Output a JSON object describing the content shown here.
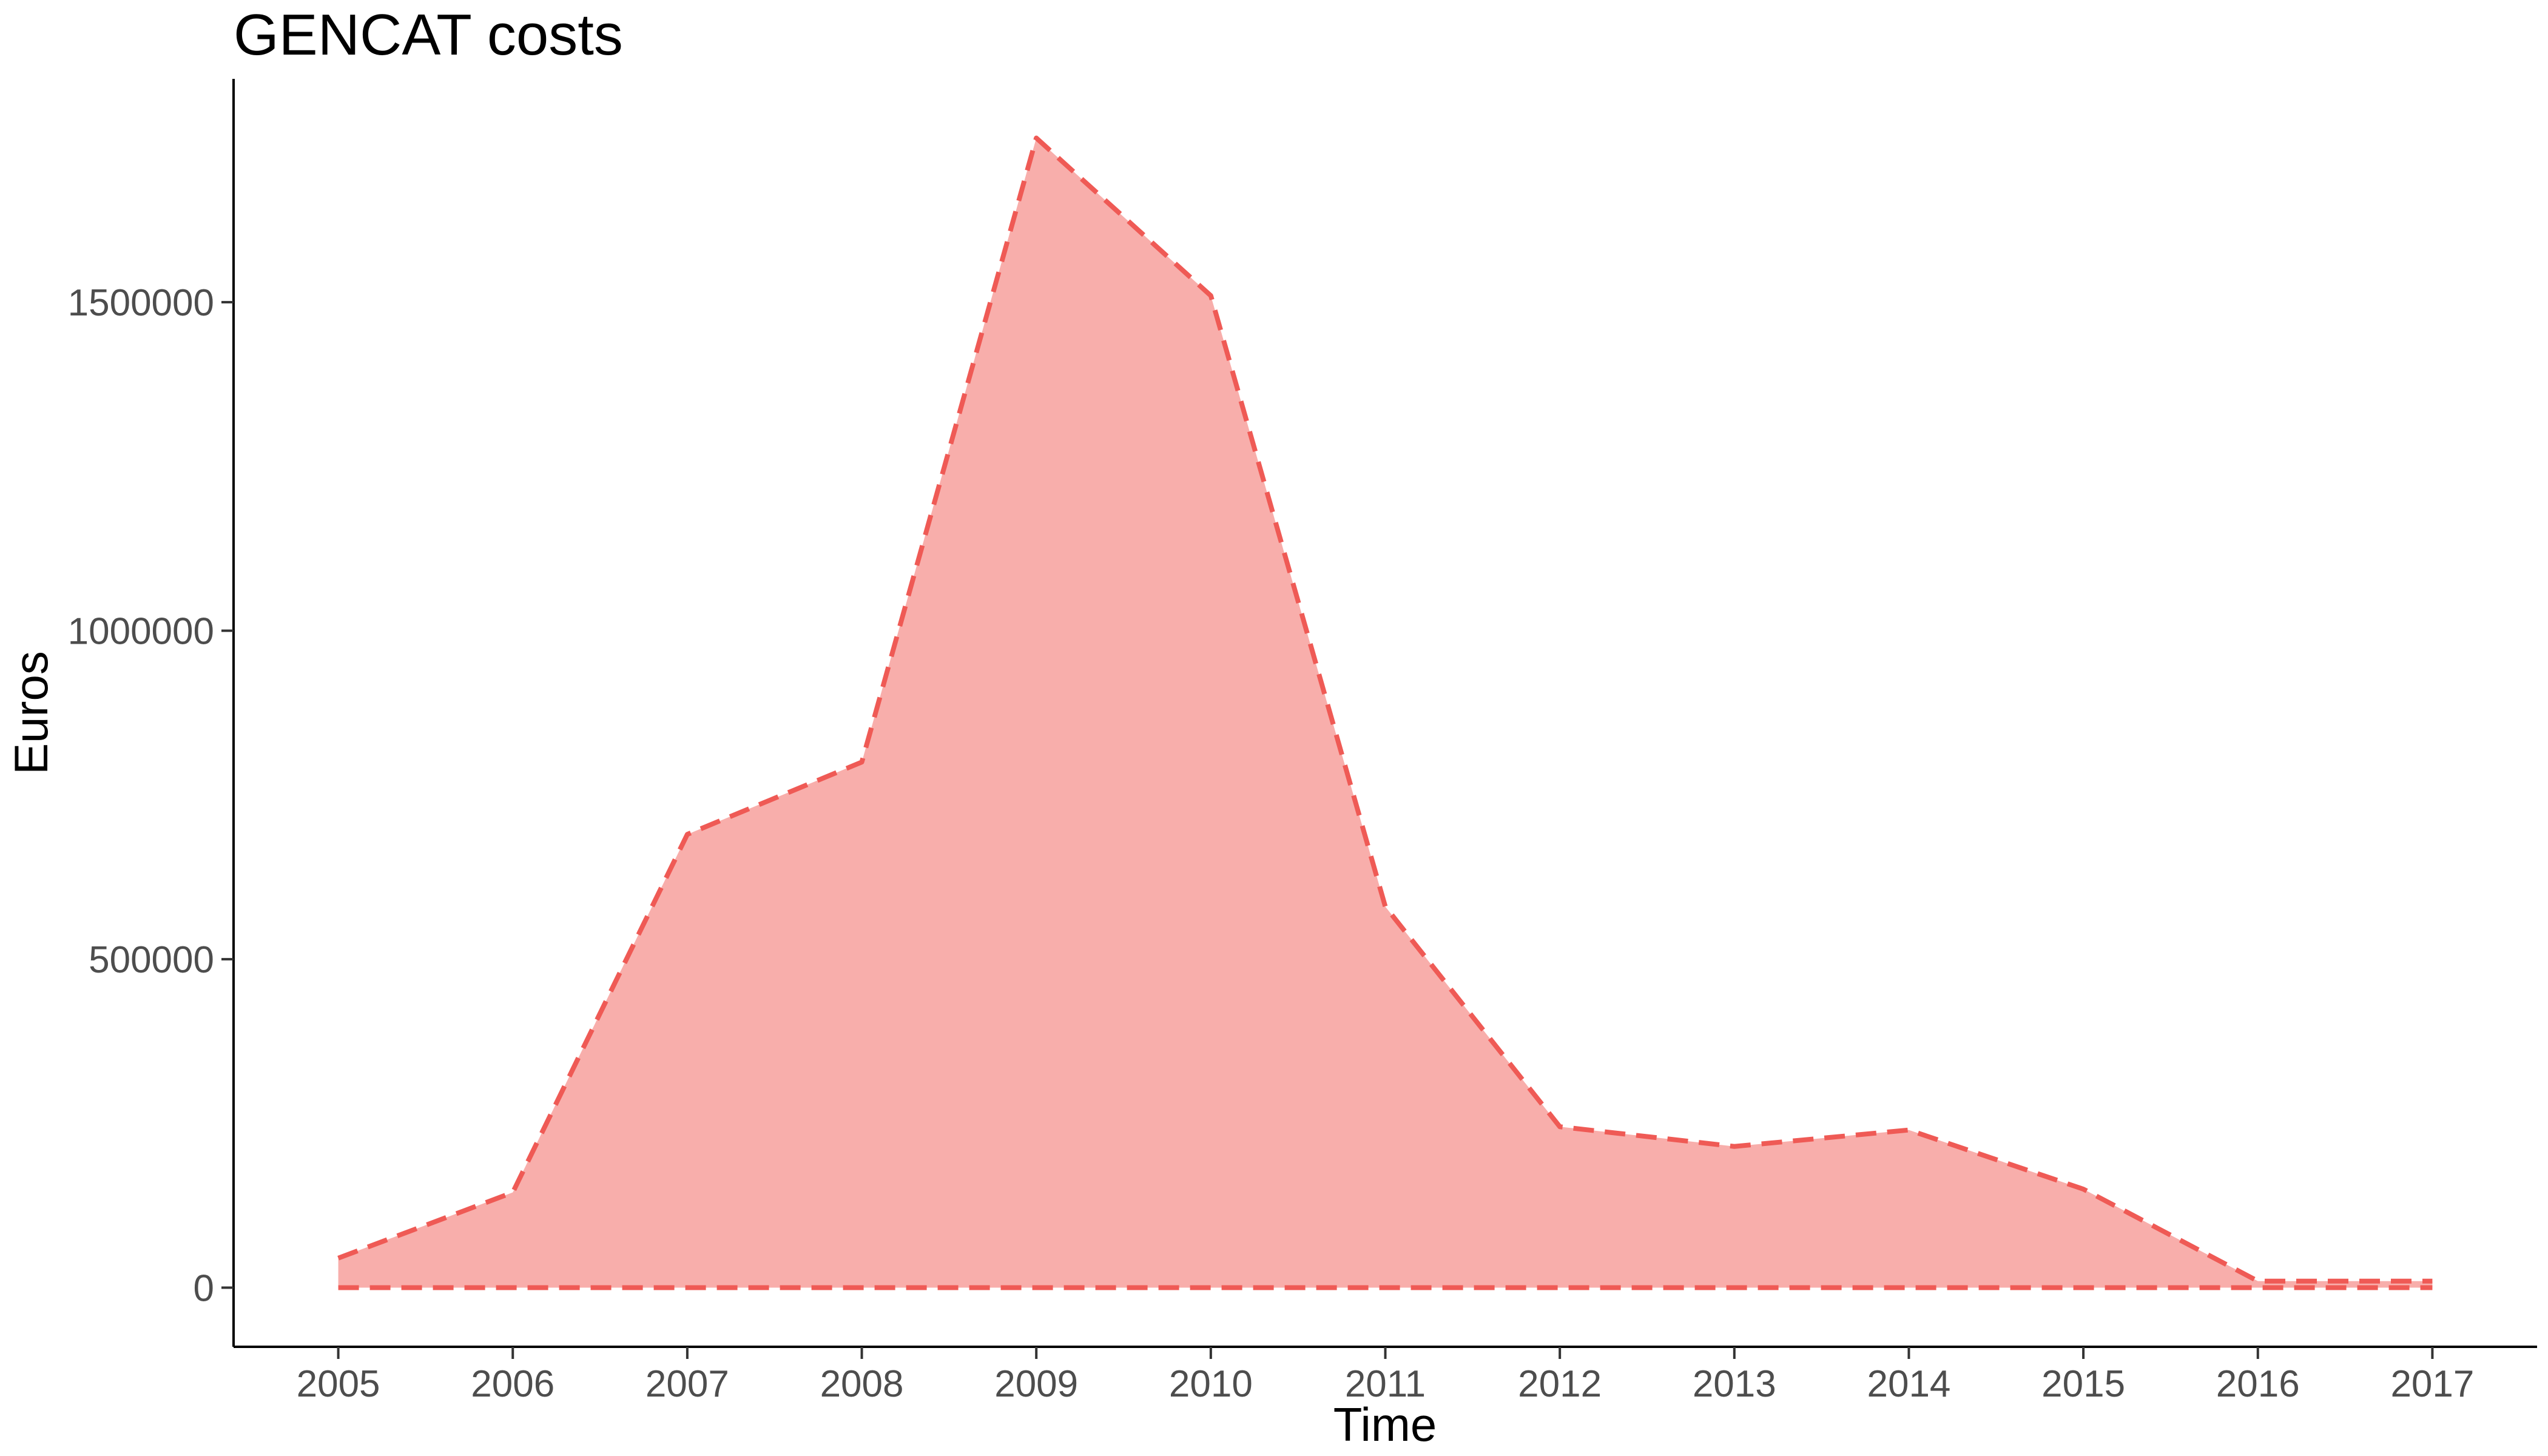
{
  "chart_data": {
    "type": "area",
    "title": "GENCAT costs",
    "xlabel": "Time",
    "ylabel": "Euros",
    "x": [
      2005,
      2006,
      2007,
      2008,
      2009,
      2010,
      2011,
      2012,
      2013,
      2014,
      2015,
      2016,
      2017
    ],
    "x_ticks": [
      "2005",
      "2006",
      "2007",
      "2008",
      "2009",
      "2010",
      "2011",
      "2012",
      "2013",
      "2014",
      "2015",
      "2016",
      "2017"
    ],
    "y_ticks": [
      "0",
      "500000",
      "1000000",
      "1500000"
    ],
    "y_tick_values": [
      0,
      500000,
      1000000,
      1500000
    ],
    "xlim": [
      2004.4,
      2017.6
    ],
    "ylim": [
      -90000,
      1840000
    ],
    "series": [
      {
        "values": [
          45000,
          145000,
          690000,
          800000,
          1750000,
          1510000,
          580000,
          245000,
          215000,
          240000,
          150000,
          10000,
          10000
        ]
      }
    ],
    "baseline": 0,
    "grid": false,
    "legend": "none",
    "colors": {
      "fill": "#f8aeab",
      "line": "#ef5a55",
      "axis": "#000000",
      "tick_text": "#4d4d4d"
    }
  }
}
